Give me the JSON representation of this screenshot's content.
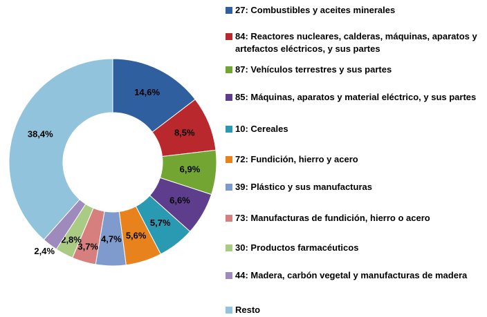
{
  "chart_data": {
    "type": "donut",
    "categories": [
      "27: Combustibles y aceites minerales",
      "84: Reactores nucleares, calderas, máquinas, aparatos y artefactos eléctricos, y sus partes",
      "87: Vehículos terrestres y sus partes",
      "85: Máquinas, aparatos y material eléctrico, y sus partes",
      "10: Cereales",
      "72: Fundición, hierro y acero",
      "39: Plástico y sus manufacturas",
      "73: Manufacturas de fundición, hierro o acero",
      "30: Productos farmacéuticos",
      "44: Madera, carbón vegetal y manufacturas de madera",
      "Resto"
    ],
    "values": [
      14.6,
      8.5,
      6.9,
      6.6,
      5.7,
      5.6,
      4.7,
      3.7,
      2.8,
      2.4,
      38.4
    ],
    "value_labels": [
      "14,6%",
      "8,5%",
      "6,9%",
      "6,6%",
      "5,7%",
      "5,6%",
      "4,7%",
      "3,7%",
      "2,8%",
      "2,4%",
      "38,4%"
    ],
    "colors": [
      "#2f5f9f",
      "#b8282c",
      "#73a533",
      "#5e3e8c",
      "#2a9ab3",
      "#e8821d",
      "#7f9bcd",
      "#d77f7e",
      "#a9cb83",
      "#9f8abd",
      "#91c4dc"
    ],
    "legend": "right"
  }
}
